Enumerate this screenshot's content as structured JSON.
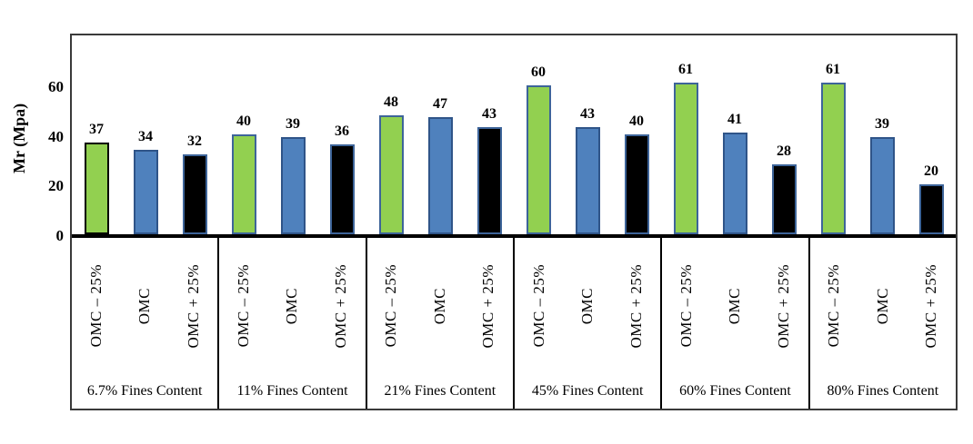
{
  "figure": {
    "background": "#ffffff",
    "chart_border_color": "#3a3a3a",
    "axis_line_color": "#000000",
    "divider_color": "#000000"
  },
  "chart_data": {
    "type": "bar",
    "title": "",
    "xlabel": "",
    "ylabel": "Mr (Mpa)",
    "ylim": [
      0,
      80
    ],
    "yticks": [
      "0",
      "20",
      "40",
      "60"
    ],
    "grid": false,
    "legend_position": "none",
    "value_labels_shown": true,
    "categories": [
      "6.7% Fines Content",
      "11% Fines Content",
      "21% Fines Content",
      "45% Fines Content",
      "60% Fines Content",
      "80% Fines Content"
    ],
    "sub_categories": [
      "OMC – 25%",
      "OMC",
      "OMC + 25%"
    ],
    "series": [
      {
        "name": "OMC – 25%",
        "fill": "#92D050",
        "border": "#3D6499",
        "values": [
          37,
          40,
          48,
          60,
          61,
          61
        ]
      },
      {
        "name": "OMC",
        "fill": "#4F81BD",
        "border": "#2F5488",
        "values": [
          34,
          39,
          47,
          43,
          41,
          39
        ]
      },
      {
        "name": "OMC + 25%",
        "fill": "#000000",
        "border": "#3D6499",
        "values": [
          32,
          36,
          43,
          40,
          28,
          20
        ]
      }
    ],
    "first_bar_border_color": "#000000"
  }
}
